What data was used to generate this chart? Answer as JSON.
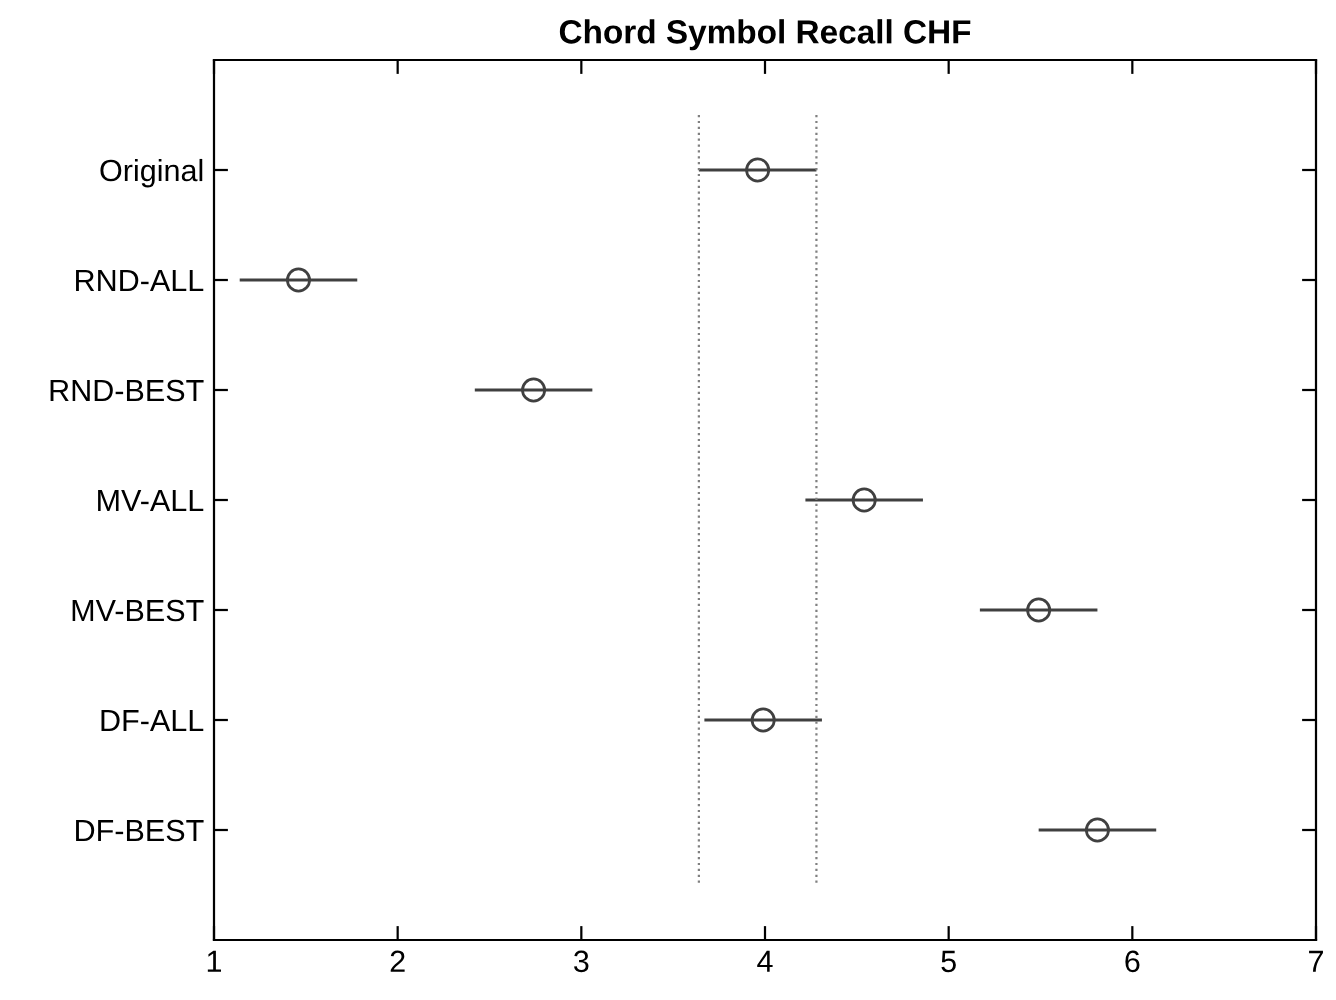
{
  "chart_data": {
    "type": "scatter",
    "orientation": "horizontal",
    "title": "Chord Symbol Recall CHF",
    "categories": [
      "Original",
      "RND-ALL",
      "RND-BEST",
      "MV-ALL",
      "MV-BEST",
      "DF-ALL",
      "DF-BEST"
    ],
    "values": [
      3.96,
      1.46,
      2.74,
      4.54,
      5.49,
      3.99,
      5.81
    ],
    "errors": [
      0.32,
      0.32,
      0.32,
      0.32,
      0.32,
      0.32,
      0.32
    ],
    "color": "#404040",
    "marker": "circle",
    "xlim": [
      1,
      7
    ],
    "xticks": [
      1,
      2,
      3,
      4,
      5,
      6,
      7
    ],
    "ref_lines": [
      {
        "axis": "x",
        "value": 3.64,
        "line_style": "dotted",
        "color": "#808080"
      },
      {
        "axis": "x",
        "value": 4.28,
        "line_style": "dotted",
        "color": "#808080"
      }
    ],
    "grid": false
  }
}
